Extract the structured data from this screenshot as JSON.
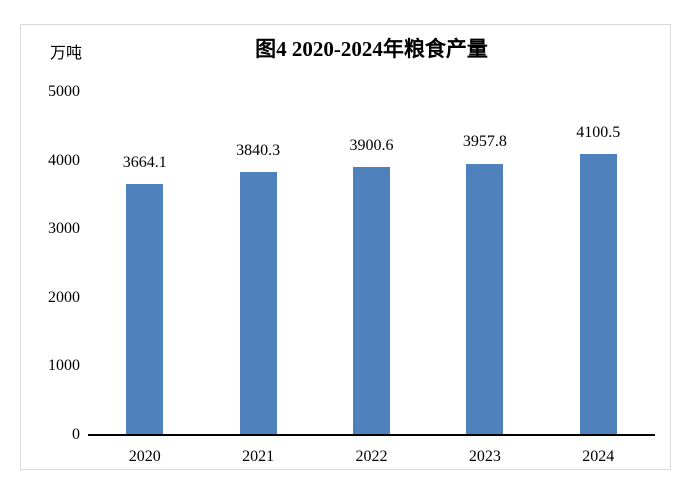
{
  "chart_data": {
    "type": "bar",
    "title": "图4 2020-2024年粮食产量",
    "unit_label": "万吨",
    "xlabel": "",
    "ylabel": "万吨",
    "categories": [
      "2020",
      "2021",
      "2022",
      "2023",
      "2024"
    ],
    "values": [
      3664.1,
      3840.3,
      3900.6,
      3957.8,
      4100.5
    ],
    "data_labels": [
      "3664.1",
      "3840.3",
      "3900.6",
      "3957.8",
      "4100.5"
    ],
    "yticks": [
      0,
      1000,
      2000,
      3000,
      4000,
      5000
    ],
    "ylim": [
      0,
      5000
    ],
    "grid": false,
    "legend": false,
    "bar_color": "#4F81BD",
    "axis_line_color": "#000000",
    "text_color": "#000000",
    "frame_border_color": "#D9D9D9",
    "background_color": "#FFFFFF"
  }
}
